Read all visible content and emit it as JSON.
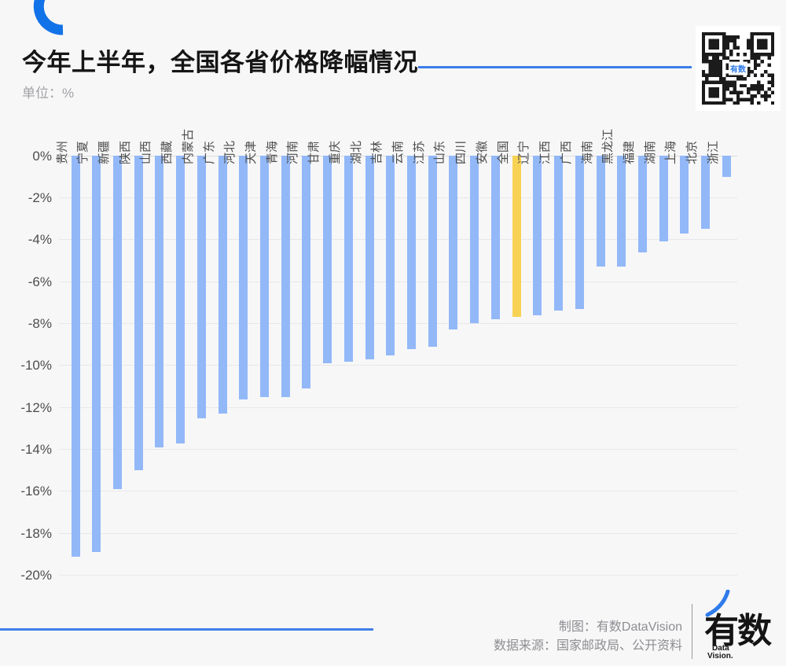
{
  "header": {
    "title": "今年上半年，全国各省价格降幅情况",
    "unit_label": "单位：%"
  },
  "branding": {
    "qr_overlay_text": "有数",
    "credit_line": "制图：有数DataVision",
    "source_line": "数据来源：国家邮政局、公开资料",
    "logo_text": "有数",
    "logo_sub_line1": "Data",
    "logo_sub_line2": "Vision."
  },
  "colors": {
    "bar_blue": "#92b8f8",
    "highlight_yellow": "#f8d254",
    "accent_blue": "#3b7de9",
    "arc_blue": "#1273e8",
    "grid": "#e8e8ea",
    "axis_text": "#4d4d4d",
    "background": "#f7f7f8"
  },
  "chart_data": {
    "type": "bar",
    "title": "今年上半年，全国各省价格降幅情况",
    "unit": "%",
    "ylabel": "",
    "xlabel": "",
    "ylim": [
      -20,
      0
    ],
    "ytick_step": 2,
    "yticks": [
      "0%",
      "-2%",
      "-4%",
      "-6%",
      "-8%",
      "-10%",
      "-12%",
      "-14%",
      "-16%",
      "-18%",
      "-20%"
    ],
    "grid": true,
    "legend": false,
    "highlight_category": "全国",
    "categories": [
      "贵州",
      "宁夏",
      "新疆",
      "陕西",
      "山西",
      "西藏",
      "内蒙古",
      "广东",
      "河北",
      "天津",
      "青海",
      "河南",
      "甘肃",
      "重庆",
      "湖北",
      "吉林",
      "云南",
      "江苏",
      "山东",
      "四川",
      "安徽",
      "全国",
      "辽宁",
      "江西",
      "广西",
      "海南",
      "黑龙江",
      "福建",
      "湖南",
      "上海",
      "北京",
      "浙江"
    ],
    "values": [
      -19.1,
      -18.9,
      -15.9,
      -15.0,
      -13.9,
      -13.7,
      -12.5,
      -12.3,
      -11.6,
      -11.5,
      -11.5,
      -11.1,
      -9.9,
      -9.8,
      -9.7,
      -9.5,
      -9.2,
      -9.1,
      -8.3,
      -8.0,
      -7.8,
      -7.7,
      -7.6,
      -7.4,
      -7.3,
      -5.3,
      -5.3,
      -4.6,
      -4.1,
      -3.7,
      -3.5,
      -1.0
    ]
  }
}
